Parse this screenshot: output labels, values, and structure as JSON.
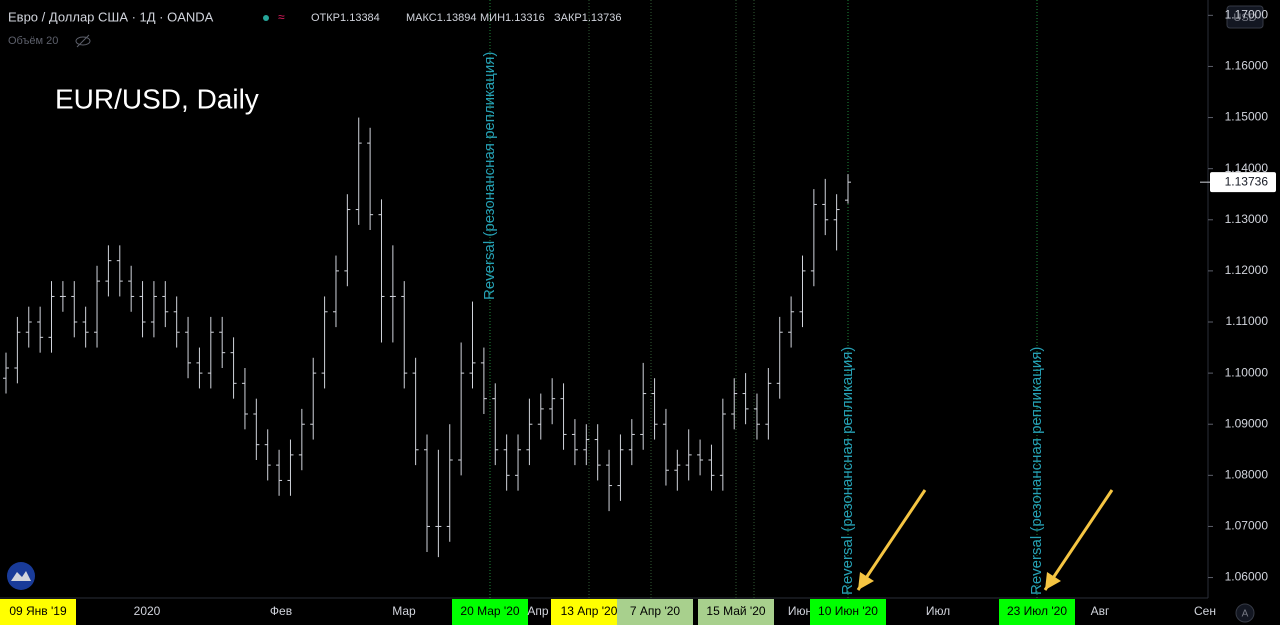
{
  "header": {
    "symbol": "Евро / Доллар США · 1Д · OANDA",
    "open_label": "ОТКР",
    "high_label": "МАКС",
    "low_label": "МИН",
    "close_label": "ЗАКР",
    "volume": "Объём 20",
    "currency": "USD",
    "axis_mode": "A"
  },
  "chart_data": {
    "type": "ohlc",
    "title": "EUR/USD, Daily",
    "color": "#d1d4dc",
    "open": [
      1.099,
      1.101,
      1.108,
      1.11,
      1.107,
      1.115,
      1.115,
      1.11,
      1.108,
      1.118,
      1.122,
      1.118,
      1.115,
      1.11,
      1.115,
      1.112,
      1.108,
      1.102,
      1.1,
      1.108,
      1.104,
      1.098,
      1.092,
      1.086,
      1.082,
      1.079,
      1.084,
      1.09,
      1.1,
      1.112,
      1.12,
      1.132,
      1.145,
      1.131,
      1.115,
      1.115,
      1.1,
      1.085,
      1.07,
      1.07,
      1.083,
      1.1,
      1.102,
      1.095,
      1.085,
      1.08,
      1.085,
      1.09,
      1.093,
      1.095,
      1.088,
      1.085,
      1.087,
      1.082,
      1.078,
      1.085,
      1.088,
      1.096,
      1.09,
      1.081,
      1.082,
      1.084,
      1.083,
      1.08,
      1.092,
      1.096,
      1.093,
      1.09,
      1.098,
      1.108,
      1.112,
      1.12,
      1.133,
      1.13,
      1.13384
    ],
    "high": [
      1.104,
      1.111,
      1.113,
      1.113,
      1.118,
      1.118,
      1.118,
      1.113,
      1.121,
      1.125,
      1.125,
      1.121,
      1.118,
      1.118,
      1.118,
      1.115,
      1.111,
      1.105,
      1.111,
      1.111,
      1.107,
      1.101,
      1.095,
      1.089,
      1.085,
      1.087,
      1.093,
      1.103,
      1.115,
      1.123,
      1.135,
      1.15,
      1.148,
      1.134,
      1.125,
      1.118,
      1.103,
      1.088,
      1.085,
      1.09,
      1.106,
      1.114,
      1.105,
      1.098,
      1.088,
      1.088,
      1.095,
      1.096,
      1.099,
      1.098,
      1.091,
      1.09,
      1.09,
      1.085,
      1.088,
      1.091,
      1.102,
      1.099,
      1.093,
      1.085,
      1.089,
      1.087,
      1.086,
      1.095,
      1.099,
      1.1,
      1.096,
      1.101,
      1.111,
      1.115,
      1.123,
      1.136,
      1.138,
      1.135,
      1.13894
    ],
    "low": [
      1.096,
      1.098,
      1.105,
      1.104,
      1.104,
      1.112,
      1.107,
      1.105,
      1.105,
      1.115,
      1.115,
      1.112,
      1.107,
      1.107,
      1.109,
      1.105,
      1.099,
      1.097,
      1.097,
      1.101,
      1.095,
      1.089,
      1.083,
      1.079,
      1.076,
      1.076,
      1.081,
      1.087,
      1.097,
      1.109,
      1.117,
      1.129,
      1.128,
      1.106,
      1.106,
      1.097,
      1.082,
      1.065,
      1.064,
      1.067,
      1.08,
      1.097,
      1.092,
      1.082,
      1.077,
      1.077,
      1.082,
      1.087,
      1.09,
      1.085,
      1.082,
      1.082,
      1.079,
      1.073,
      1.075,
      1.082,
      1.085,
      1.087,
      1.078,
      1.077,
      1.079,
      1.08,
      1.077,
      1.077,
      1.089,
      1.09,
      1.087,
      1.087,
      1.095,
      1.105,
      1.109,
      1.117,
      1.127,
      1.124,
      1.13316
    ],
    "close": [
      1.101,
      1.108,
      1.11,
      1.107,
      1.115,
      1.115,
      1.11,
      1.108,
      1.118,
      1.122,
      1.118,
      1.115,
      1.11,
      1.115,
      1.112,
      1.108,
      1.102,
      1.1,
      1.108,
      1.104,
      1.098,
      1.092,
      1.086,
      1.082,
      1.079,
      1.084,
      1.09,
      1.1,
      1.112,
      1.12,
      1.132,
      1.145,
      1.131,
      1.115,
      1.115,
      1.1,
      1.085,
      1.07,
      1.07,
      1.083,
      1.1,
      1.102,
      1.095,
      1.085,
      1.08,
      1.085,
      1.09,
      1.093,
      1.095,
      1.088,
      1.085,
      1.087,
      1.082,
      1.078,
      1.085,
      1.088,
      1.096,
      1.09,
      1.081,
      1.082,
      1.084,
      1.083,
      1.08,
      1.092,
      1.096,
      1.093,
      1.09,
      1.098,
      1.108,
      1.112,
      1.12,
      1.133,
      1.13,
      1.132,
      1.13736
    ],
    "ylim": [
      1.056,
      1.173
    ],
    "yticks": [
      {
        "value": 1.06,
        "label": "1.06000"
      },
      {
        "value": 1.07,
        "label": "1.07000"
      },
      {
        "value": 1.08,
        "label": "1.08000"
      },
      {
        "value": 1.09,
        "label": "1.09000"
      },
      {
        "value": 1.1,
        "label": "1.10000"
      },
      {
        "value": 1.11,
        "label": "1.11000"
      },
      {
        "value": 1.12,
        "label": "1.12000"
      },
      {
        "value": 1.13,
        "label": "1.13000"
      },
      {
        "value": 1.14,
        "label": "1.14000"
      },
      {
        "value": 1.15,
        "label": "1.15000"
      },
      {
        "value": 1.16,
        "label": "1.16000"
      },
      {
        "value": 1.17,
        "label": "1.17000"
      }
    ],
    "x_labels": [
      {
        "text": "09 Янв '19",
        "bg": "#ffff00"
      },
      {
        "text": "2020"
      },
      {
        "text": "Фев"
      },
      {
        "text": "Мар"
      },
      {
        "text": "20 Мар '20",
        "bg": "#00ff00"
      },
      {
        "text": "Апр"
      },
      {
        "text": "13 Апр '20",
        "bg": "#ffff00"
      },
      {
        "text": "7 Апр '20",
        "bg": "#a8d08d"
      },
      {
        "text": "15 Май '20",
        "bg": "#a8d08d"
      },
      {
        "text": "Июн"
      },
      {
        "text": "10 Июн '20",
        "bg": "#00ff00"
      },
      {
        "text": "Июл"
      },
      {
        "text": "23 Июл '20",
        "bg": "#00ff00"
      },
      {
        "text": "Авг"
      },
      {
        "text": "Сен"
      }
    ],
    "annotations": [
      "Reversal (резонансная репликация)",
      "Reversal (резонансная репликация)",
      "Reversal (резонансная репликация)"
    ]
  }
}
